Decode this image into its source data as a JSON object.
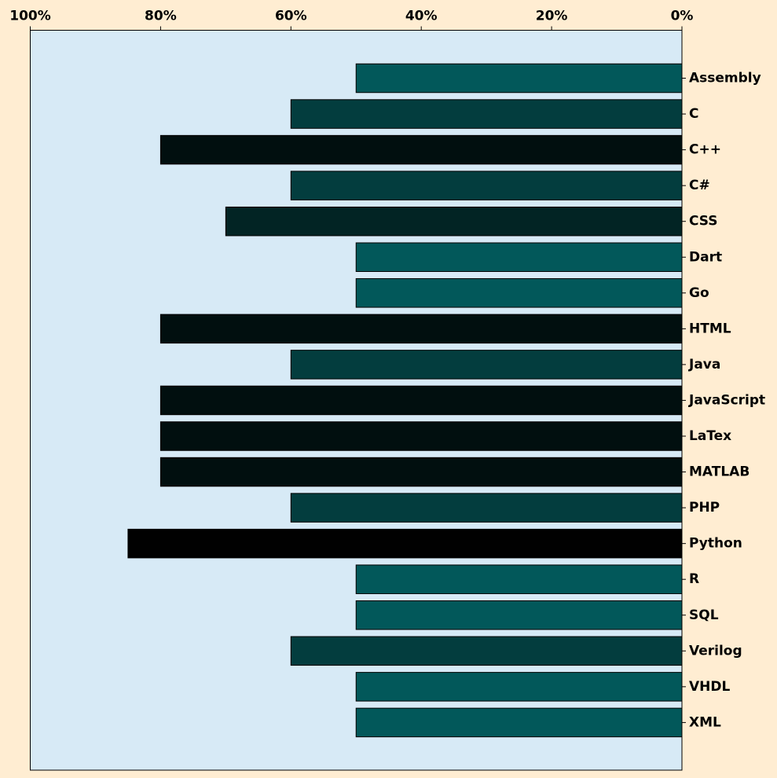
{
  "page": {
    "background": "#ffedd2"
  },
  "chart_data": {
    "type": "bar",
    "orientation": "horizontal",
    "x_direction": "reversed",
    "x_axis_position": "top",
    "y_axis_position": "right",
    "title": "",
    "xlabel": "",
    "ylabel": "",
    "xlim": [
      0,
      100
    ],
    "x_ticks": [
      100,
      80,
      60,
      40,
      20,
      0
    ],
    "x_tick_labels": [
      "100%",
      "80%",
      "60%",
      "40%",
      "20%",
      "0%"
    ],
    "grid": false,
    "plot_background": "#d7eaf6",
    "colors": {
      "50": "#02585a",
      "60": "#033d3e",
      "70": "#022424",
      "80": "#010f0f",
      "85": "#010101"
    },
    "categories": [
      "Assembly",
      "C",
      "C++",
      "C#",
      "CSS",
      "Dart",
      "Go",
      "HTML",
      "Java",
      "JavaScript",
      "LaTex",
      "MATLAB",
      "PHP",
      "Python",
      "R",
      "SQL",
      "Verilog",
      "VHDL",
      "XML"
    ],
    "values": [
      50,
      60,
      80,
      60,
      70,
      50,
      50,
      80,
      60,
      80,
      80,
      80,
      60,
      85,
      50,
      50,
      60,
      50,
      50
    ]
  }
}
